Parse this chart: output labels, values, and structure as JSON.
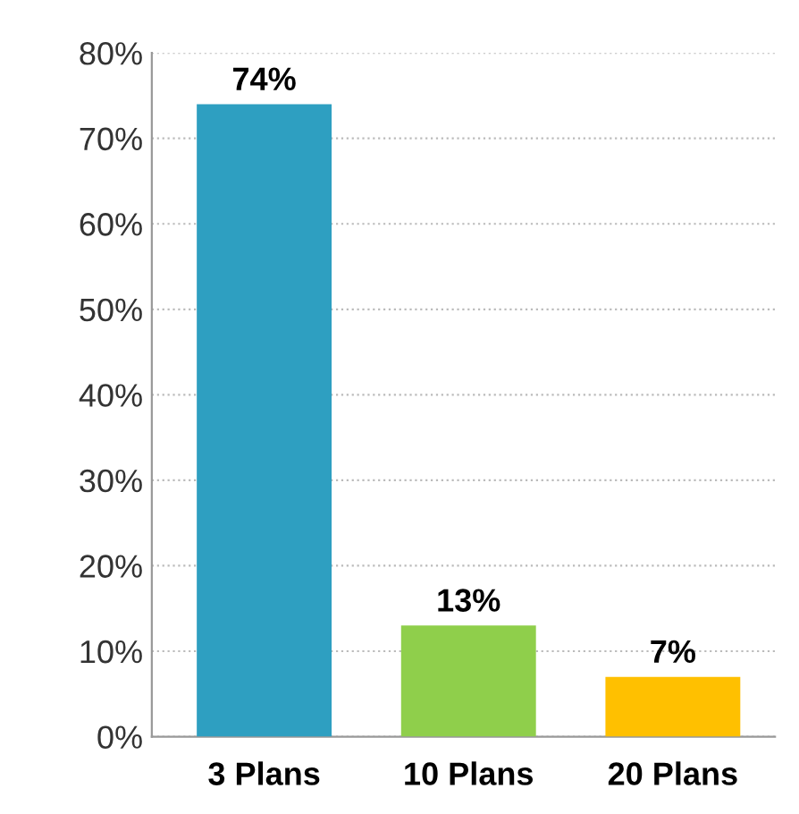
{
  "chart_data": {
    "type": "bar",
    "categories": [
      "3 Plans",
      "10 Plans",
      "20 Plans"
    ],
    "values": [
      74,
      13,
      7
    ],
    "colors": [
      "#2e9fc1",
      "#8fcf4b",
      "#ffc000"
    ],
    "value_labels": [
      "74%",
      "13%",
      "7%"
    ],
    "ylim": [
      0,
      80
    ],
    "yticks": [
      {
        "value": 0,
        "label": "0%"
      },
      {
        "value": 10,
        "label": "10%"
      },
      {
        "value": 20,
        "label": "20%"
      },
      {
        "value": 30,
        "label": "30%"
      },
      {
        "value": 40,
        "label": "40%"
      },
      {
        "value": 50,
        "label": "50%"
      },
      {
        "value": 60,
        "label": "60%"
      },
      {
        "value": 70,
        "label": "70%"
      },
      {
        "value": 80,
        "label": "80%"
      }
    ],
    "grid": "y",
    "legend": false
  }
}
